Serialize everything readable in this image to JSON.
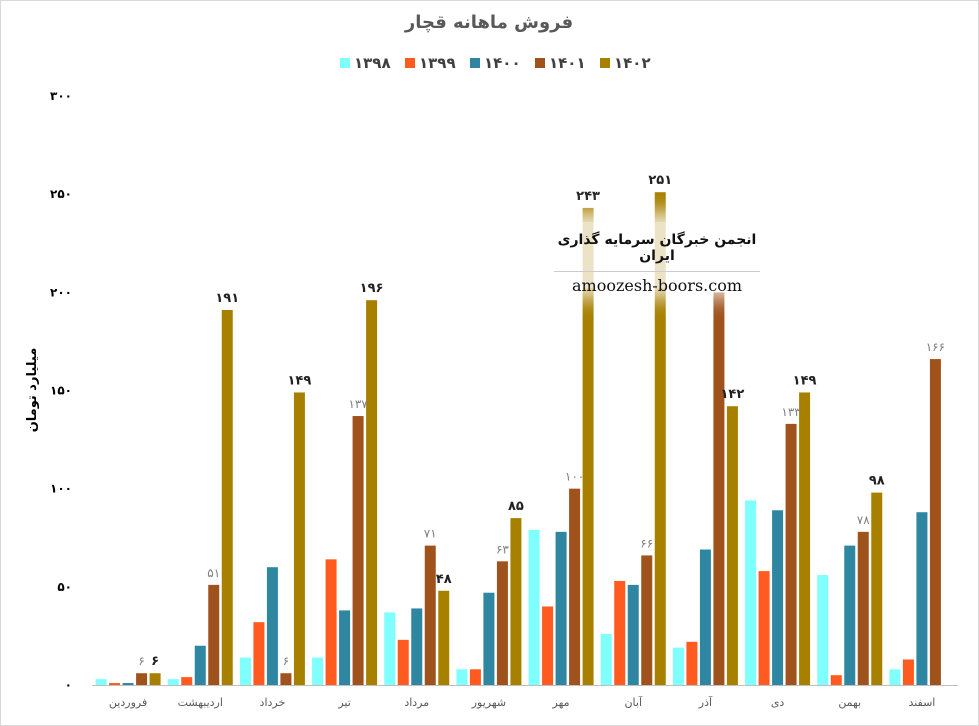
{
  "chart_data": {
    "type": "bar",
    "title": "فروش ماهانه قچار",
    "ylabel": "میلیارد تومان",
    "ylim": [
      0,
      300
    ],
    "yticks": [
      "۰",
      "۵۰",
      "۱۰۰",
      "۱۵۰",
      "۲۰۰",
      "۲۵۰",
      "۳۰۰"
    ],
    "ytick_values": [
      0,
      50,
      100,
      150,
      200,
      250,
      300
    ],
    "grid": false,
    "legend_position": "top",
    "categories": [
      "فروردین",
      "اردیبهشت",
      "خرداد",
      "تیر",
      "مرداد",
      "شهریور",
      "مهر",
      "آبان",
      "آذر",
      "دی",
      "بهمن",
      "اسفند"
    ],
    "series": [
      {
        "name": "۱۳۹۸",
        "color": "#80FFFF",
        "values": [
          3,
          3,
          14,
          14,
          37,
          8,
          79,
          26,
          19,
          94,
          56,
          8
        ]
      },
      {
        "name": "۱۳۹۹",
        "color": "#FF5A1F",
        "values": [
          1,
          4,
          32,
          64,
          23,
          8,
          40,
          53,
          22,
          58,
          5,
          13
        ]
      },
      {
        "name": "۱۴۰۰",
        "color": "#2E86A0",
        "values": [
          1,
          20,
          60,
          38,
          39,
          47,
          78,
          51,
          69,
          89,
          71,
          88
        ]
      },
      {
        "name": "۱۴۰۱",
        "color": "#A0521D",
        "values": [
          6,
          51,
          6,
          137,
          71,
          63,
          100,
          66,
          200,
          133,
          78,
          166
        ]
      },
      {
        "name": "۱۴۰۲",
        "color": "#A88000",
        "values": [
          6,
          191,
          149,
          196,
          48,
          85,
          243,
          251,
          142,
          149,
          98,
          null
        ]
      }
    ],
    "data_labels": [
      {
        "series": 3,
        "cat": 0,
        "text": "۶",
        "style": "light"
      },
      {
        "series": 4,
        "cat": 0,
        "text": "۶",
        "style": "bold"
      },
      {
        "series": 3,
        "cat": 1,
        "text": "۵۱",
        "style": "light"
      },
      {
        "series": 4,
        "cat": 1,
        "text": "۱۹۱",
        "style": "bold"
      },
      {
        "series": 3,
        "cat": 2,
        "text": "۶",
        "style": "light"
      },
      {
        "series": 4,
        "cat": 2,
        "text": "۱۴۹",
        "style": "bold"
      },
      {
        "series": 3,
        "cat": 3,
        "text": "۱۳۷",
        "style": "light"
      },
      {
        "series": 4,
        "cat": 3,
        "text": "۱۹۶",
        "style": "bold"
      },
      {
        "series": 3,
        "cat": 4,
        "text": "۷۱",
        "style": "light"
      },
      {
        "series": 4,
        "cat": 4,
        "text": "۴۸",
        "style": "bold"
      },
      {
        "series": 3,
        "cat": 5,
        "text": "۶۳",
        "style": "light"
      },
      {
        "series": 4,
        "cat": 5,
        "text": "۸۵",
        "style": "bold"
      },
      {
        "series": 3,
        "cat": 6,
        "text": "۱۰۰",
        "style": "light"
      },
      {
        "series": 4,
        "cat": 6,
        "text": "۲۴۳",
        "style": "bold"
      },
      {
        "series": 3,
        "cat": 7,
        "text": "۶۶",
        "style": "light"
      },
      {
        "series": 4,
        "cat": 7,
        "text": "۲۵۱",
        "style": "bold"
      },
      {
        "series": 4,
        "cat": 8,
        "text": "۱۴۲",
        "style": "bold"
      },
      {
        "series": 3,
        "cat": 9,
        "text": "۱۳۳",
        "style": "light"
      },
      {
        "series": 4,
        "cat": 9,
        "text": "۱۴۹",
        "style": "bold"
      },
      {
        "series": 3,
        "cat": 10,
        "text": "۷۸",
        "style": "light"
      },
      {
        "series": 4,
        "cat": 10,
        "text": "۹۸",
        "style": "bold"
      },
      {
        "series": 3,
        "cat": 11,
        "text": "۱۶۶",
        "style": "light"
      }
    ]
  },
  "watermark": {
    "title": "انجمن خبرگان سرمایه گذاری ایران",
    "url": "amoozesh-boors.com"
  }
}
